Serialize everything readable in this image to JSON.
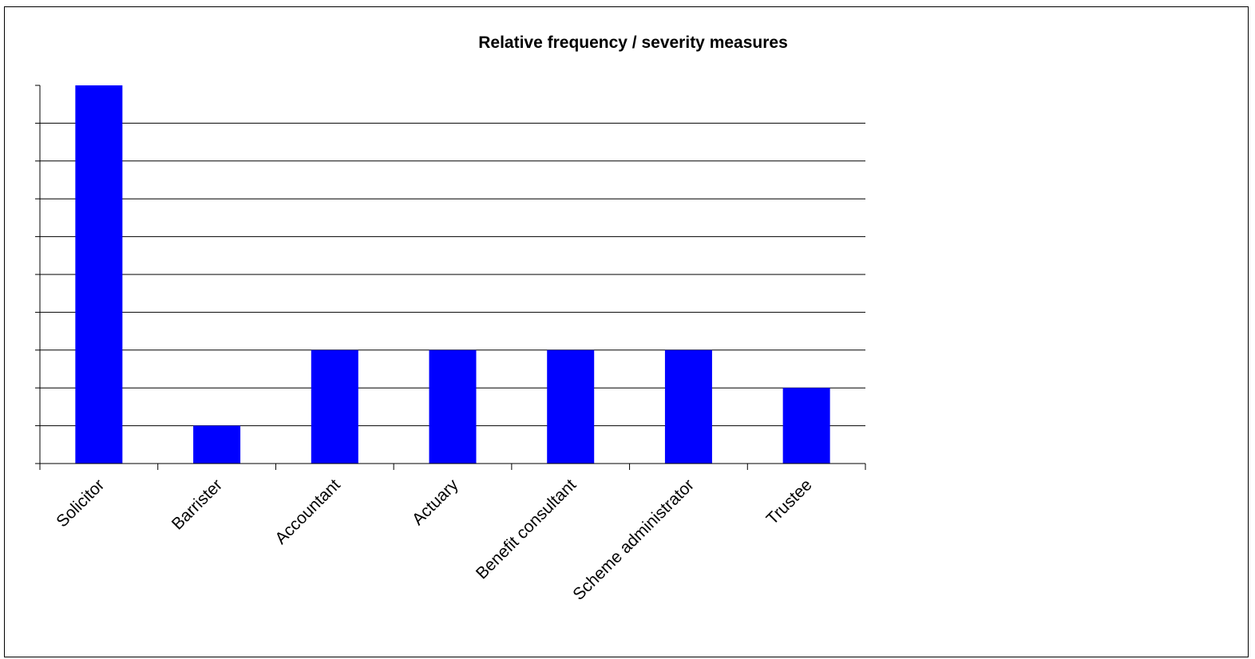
{
  "chart_data": {
    "type": "bar",
    "title": "Relative frequency / severity measures",
    "xlabel": "",
    "ylabel": "",
    "categories": [
      "Solicitor",
      "Barrister",
      "Accountant",
      "Actuary",
      "Benefit consultant",
      "Scheme administrator",
      "Trustee"
    ],
    "values": [
      10,
      1,
      3,
      3,
      3,
      3,
      2
    ],
    "ylim": [
      0,
      10
    ],
    "y_tick_labels_shown": false,
    "grid": "horizontal",
    "legend": "none",
    "bar_color": "#0000FF"
  }
}
